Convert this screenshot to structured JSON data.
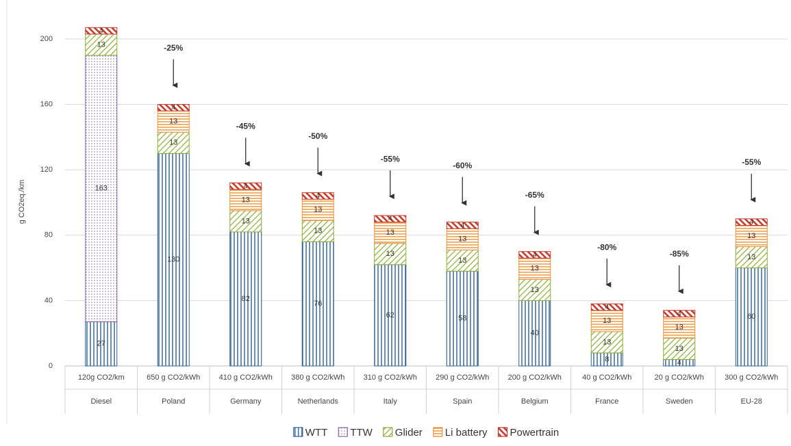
{
  "chart_data": {
    "type": "stacked-bar",
    "y_label": "g CO2eq./km",
    "categories": [
      "Diesel",
      "Poland",
      "Germany",
      "Netherlands",
      "Italy",
      "Spain",
      "Belgium",
      "France",
      "Sweden",
      "EU-28"
    ],
    "intensity": [
      "120g CO2/km",
      "650 g CO2/kWh",
      "410 g CO2/kWh",
      "380 g CO2/kWh",
      "310 g CO2/kWh",
      "290 g CO2/kWh",
      "200 g CO2/kWh",
      "40 g CO2/kWh",
      "20 g CO2/kWh",
      "300 g CO2/kWh"
    ],
    "annotations": [
      null,
      "-25%",
      "-45%",
      "-50%",
      "-55%",
      "-60%",
      "-65%",
      "-80%",
      "-85%",
      "-55%"
    ],
    "series": [
      {
        "name": "WTT",
        "color": "#2e5f8f",
        "pattern": "vertical",
        "values": [
          27,
          130,
          82,
          76,
          62,
          58,
          40,
          8,
          4,
          60
        ]
      },
      {
        "name": "TTW",
        "color": "#8a6aa8",
        "pattern": "dots",
        "values": [
          163,
          null,
          null,
          null,
          null,
          null,
          null,
          null,
          null,
          null
        ]
      },
      {
        "name": "Glider",
        "color": "#8aaa3c",
        "pattern": "diagonal",
        "values": [
          13,
          13,
          13,
          13,
          13,
          13,
          13,
          13,
          13,
          13
        ]
      },
      {
        "name": "Li battery",
        "color": "#e8913a",
        "pattern": "horizontal",
        "values": [
          null,
          13,
          13,
          13,
          13,
          13,
          13,
          13,
          13,
          13
        ]
      },
      {
        "name": "Powertrain",
        "color": "#c0392b",
        "pattern": "thick-diagonal",
        "values": [
          4,
          4,
          4,
          4,
          4,
          4,
          4,
          4,
          4,
          4
        ]
      }
    ],
    "ylim": [
      0,
      210
    ],
    "yticks": [
      0,
      40,
      80,
      120,
      160,
      200
    ],
    "grid": true,
    "legend": "bottom"
  }
}
